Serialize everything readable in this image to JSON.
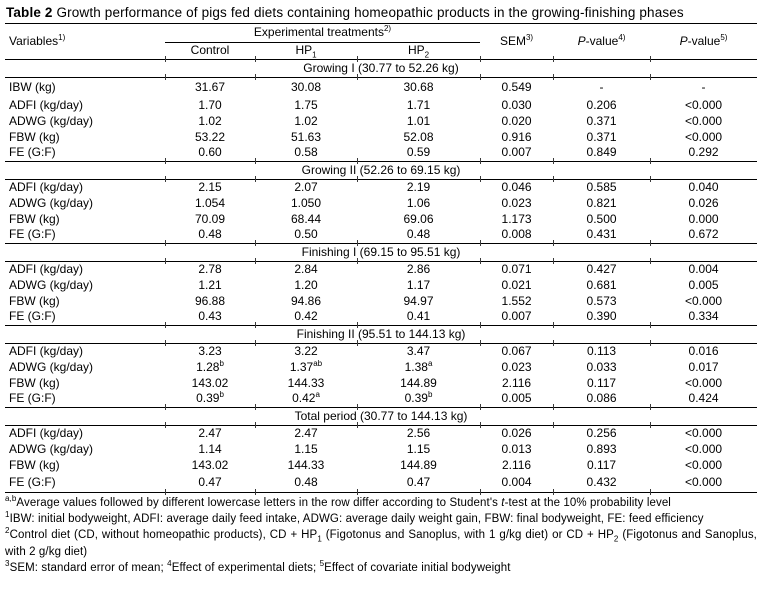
{
  "title": [
    {
      "b": "Table 2"
    },
    {
      "t": " Growth performance of pigs fed diets containing homeopathic products in the growing-finishing phases"
    }
  ],
  "header": {
    "variables": [
      {
        "t": "Variables"
      },
      {
        "sup": "1)"
      }
    ],
    "treatments": [
      {
        "t": "Experimental treatments"
      },
      {
        "sup": "2)"
      }
    ],
    "treatment_columns": [
      [
        {
          "t": "Control"
        }
      ],
      [
        {
          "t": "HP"
        },
        {
          "sub": "1"
        }
      ],
      [
        {
          "t": "HP"
        },
        {
          "sub": "2"
        }
      ]
    ],
    "stat_columns": [
      [
        {
          "t": "SEM"
        },
        {
          "sup": "3)"
        }
      ],
      [
        {
          "i": "P"
        },
        {
          "t": "-value"
        },
        {
          "sup": "4)"
        }
      ],
      [
        {
          "i": "P"
        },
        {
          "t": "-value"
        },
        {
          "sup": "5)"
        }
      ]
    ]
  },
  "sections": [
    {
      "title": "Growing I (30.77 to 52.26 kg)",
      "rows": [
        {
          "variable": "IBW (kg)",
          "values": [
            "31.67",
            "30.08",
            "30.68",
            "0.549",
            "-",
            "-"
          ]
        },
        {
          "variable": "ADFI (kg/day)",
          "values": [
            "1.70",
            "1.75",
            "1.71",
            "0.030",
            "0.206",
            "<0.000"
          ]
        },
        {
          "variable": "ADWG (kg/day)",
          "values": [
            "1.02",
            "1.02",
            "1.01",
            "0.020",
            "0.371",
            "<0.000"
          ]
        },
        {
          "variable": "FBW (kg)",
          "values": [
            "53.22",
            "51.63",
            "52.08",
            "0.916",
            "0.371",
            "<0.000"
          ]
        },
        {
          "variable": "FE (G:F)",
          "values": [
            "0.60",
            "0.58",
            "0.59",
            "0.007",
            "0.849",
            "0.292"
          ]
        }
      ]
    },
    {
      "title": "Growing II (52.26 to 69.15 kg)",
      "rows": [
        {
          "variable": "ADFI (kg/day)",
          "values": [
            "2.15",
            "2.07",
            "2.19",
            "0.046",
            "0.585",
            "0.040"
          ]
        },
        {
          "variable": "ADWG (kg/day)",
          "values": [
            "1.054",
            "1.050",
            "1.06",
            "0.023",
            "0.821",
            "0.026"
          ]
        },
        {
          "variable": "FBW (kg)",
          "values": [
            "70.09",
            "68.44",
            "69.06",
            "1.173",
            "0.500",
            "0.000"
          ]
        },
        {
          "variable": "FE (G:F)",
          "values": [
            "0.48",
            "0.50",
            "0.48",
            "0.008",
            "0.431",
            "0.672"
          ]
        }
      ]
    },
    {
      "title": "Finishing I (69.15 to 95.51 kg)",
      "rows": [
        {
          "variable": "ADFI (kg/day)",
          "values": [
            "2.78",
            "2.84",
            "2.86",
            "0.071",
            "0.427",
            "0.004"
          ]
        },
        {
          "variable": "ADWG (kg/day)",
          "values": [
            "1.21",
            "1.20",
            "1.17",
            "0.021",
            "0.681",
            "0.005"
          ]
        },
        {
          "variable": "FBW (kg)",
          "values": [
            "96.88",
            "94.86",
            "94.97",
            "1.552",
            "0.573",
            "<0.000"
          ]
        },
        {
          "variable": "FE (G:F)",
          "values": [
            "0.43",
            "0.42",
            "0.41",
            "0.007",
            "0.390",
            "0.334"
          ]
        }
      ]
    },
    {
      "title": "Finishing II (95.51 to 144.13 kg)",
      "rows": [
        {
          "variable": "ADFI (kg/day)",
          "values": [
            "3.23",
            "3.22",
            "3.47",
            "0.067",
            "0.113",
            "0.016"
          ]
        },
        {
          "variable": "ADWG (kg/day)",
          "values": [
            {
              "t": "1.28",
              "sup": "b"
            },
            {
              "t": "1.37",
              "sup": "ab"
            },
            {
              "t": "1.38",
              "sup": "a"
            },
            "0.023",
            "0.033",
            "0.017"
          ]
        },
        {
          "variable": "FBW (kg)",
          "values": [
            "143.02",
            "144.33",
            "144.89",
            "2.116",
            "0.117",
            "<0.000"
          ]
        },
        {
          "variable": "FE (G:F)",
          "values": [
            {
              "t": "0.39",
              "sup": "b"
            },
            {
              "t": "0.42",
              "sup": "a"
            },
            {
              "t": "0.39",
              "sup": "b"
            },
            "0.005",
            "0.086",
            "0.424"
          ]
        }
      ]
    },
    {
      "title": "Total period (30.77 to 144.13 kg)",
      "rows": [
        {
          "variable": "ADFI (kg/day)",
          "values": [
            "2.47",
            "2.47",
            "2.56",
            "0.026",
            "0.256",
            "<0.000"
          ]
        },
        {
          "variable": "ADWG (kg/day)",
          "values": [
            "1.14",
            "1.15",
            "1.15",
            "0.013",
            "0.893",
            "<0.000"
          ]
        },
        {
          "variable": "FBW (kg)",
          "values": [
            "143.02",
            "144.33",
            "144.89",
            "2.116",
            "0.117",
            "<0.000"
          ]
        },
        {
          "variable": "FE (G:F)",
          "values": [
            "0.47",
            "0.48",
            "0.47",
            "0.004",
            "0.432",
            "<0.000"
          ]
        }
      ]
    }
  ],
  "footnotes": [
    [
      {
        "sup": "a,b"
      },
      {
        "t": "Average values followed by different lowercase letters in the row differ according to Student's "
      },
      {
        "i": "t"
      },
      {
        "t": "-test at the 10% probability level"
      }
    ],
    [
      {
        "sup": "1"
      },
      {
        "t": "IBW: initial bodyweight, ADFI: average daily feed intake, ADWG: average daily weight gain, FBW: final bodyweight, FE: feed efficiency"
      }
    ],
    [
      {
        "sup": "2"
      },
      {
        "t": "Control diet (CD, without homeopathic products), CD + HP"
      },
      {
        "sub": "1"
      },
      {
        "t": " (Figotonus and Sanoplus, with 1 g/kg diet) or CD + HP"
      },
      {
        "sub": "2"
      },
      {
        "t": " (Figotonus and Sanoplus, with 2 g/kg diet)"
      }
    ],
    [
      {
        "sup": "3"
      },
      {
        "t": "SEM: standard error of mean; "
      },
      {
        "sup": "4"
      },
      {
        "t": "Effect of experimental diets; "
      },
      {
        "sup": "5"
      },
      {
        "t": "Effect of covariate initial bodyweight"
      }
    ]
  ]
}
